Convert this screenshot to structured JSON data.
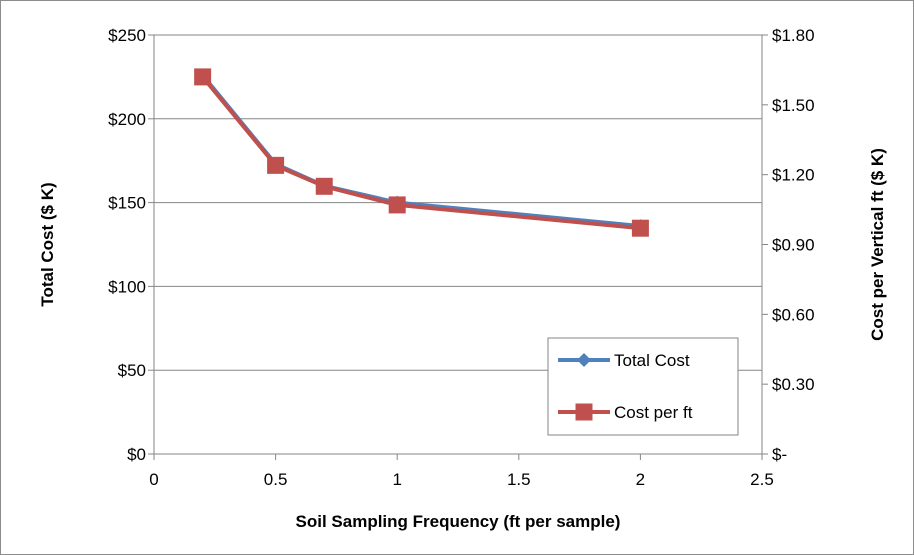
{
  "chart_data": {
    "type": "line",
    "xlabel": "Soil Sampling Frequency (ft per sample)",
    "ylabel": "Total Cost ($ K)",
    "y2label": "Cost per Vertical ft ($ K)",
    "xlim": [
      0,
      2.5
    ],
    "ylim": [
      0,
      250
    ],
    "y2lim": [
      0,
      1.8
    ],
    "x_ticks": [
      "0",
      "0.5",
      "1",
      "1.5",
      "2",
      "2.5"
    ],
    "y_ticks": [
      "$0",
      "$50",
      "$100",
      "$150",
      "$200",
      "$250"
    ],
    "y2_ticks": [
      "$-",
      "$0.30",
      "$0.60",
      "$0.90",
      "$1.20",
      "$1.50",
      "$1.80"
    ],
    "grid": "horizontal",
    "legend_position": "bottom-right inside",
    "series": [
      {
        "name": "Total Cost",
        "axis": "left",
        "color": "#4f81bd",
        "marker": "diamond",
        "x": [
          0.2,
          0.5,
          0.7,
          1,
          2
        ],
        "values": [
          226,
          173,
          160,
          150,
          136
        ]
      },
      {
        "name": "Cost per ft",
        "axis": "right",
        "color": "#c0504d",
        "marker": "square",
        "x": [
          0.2,
          0.5,
          0.7,
          1,
          2
        ],
        "values": [
          1.62,
          1.24,
          1.15,
          1.07,
          0.97
        ]
      }
    ]
  }
}
